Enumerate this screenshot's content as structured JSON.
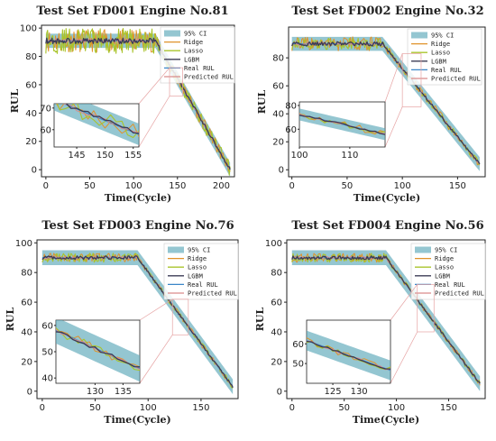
{
  "colors": {
    "ci": "#5aa8b8",
    "ridge": "#e0922a",
    "lasso": "#a9c42c",
    "lgbm": "#3b3b55",
    "real": "#3a86c8",
    "predicted": "#d98b8b",
    "connector": "#e6a3a3"
  },
  "legend_labels": [
    "95% CI",
    "Ridge",
    "Lasso",
    "LGBM",
    "Real RUL",
    "Predicted RUL"
  ],
  "chart_data": [
    {
      "type": "line",
      "title": "Test Set FD001 Engine No.81",
      "xlabel": "Time(Cycle)",
      "ylabel": "RUL",
      "xlim": [
        -5,
        215
      ],
      "ylim": [
        -5,
        102
      ],
      "xticks": [
        0,
        50,
        100,
        150,
        200
      ],
      "yticks": [
        0,
        20,
        40,
        60,
        80,
        100
      ],
      "knee": 125,
      "x_end": 210,
      "plateau": 91,
      "end_value": 0,
      "ci_half_width": 5,
      "noise": {
        "ridge": 8,
        "lasso": 9,
        "lgbm": 2
      },
      "legend_position": "top-right",
      "inset": {
        "xlim": [
          141,
          156
        ],
        "ylim": [
          52,
          72
        ],
        "xticks": [
          145,
          150,
          155
        ],
        "yticks": [
          60,
          70
        ]
      }
    },
    {
      "type": "line",
      "title": "Test Set FD002 Engine No.32",
      "xlabel": "Time(Cycle)",
      "ylabel": "RUL",
      "xlim": [
        -3,
        175
      ],
      "ylim": [
        -5,
        102
      ],
      "xticks": [
        0,
        50,
        100,
        150
      ],
      "yticks": [
        0,
        20,
        40,
        60,
        80
      ],
      "knee": 82,
      "x_end": 170,
      "plateau": 90,
      "end_value": 4,
      "ci_half_width": 5,
      "noise": {
        "ridge": 5,
        "lasso": 4,
        "lgbm": 1.5
      },
      "legend_position": "top-right",
      "inset": {
        "xlim": [
          100,
          117
        ],
        "ylim": [
          45,
          83
        ],
        "xticks": [
          100,
          110
        ],
        "yticks": [
          60,
          80
        ]
      }
    },
    {
      "type": "line",
      "title": "Test Set FD003 Engine No.76",
      "xlabel": "Time(Cycle)",
      "ylabel": "RUL",
      "xlim": [
        -5,
        185
      ],
      "ylim": [
        -5,
        102
      ],
      "xticks": [
        0,
        50,
        100,
        150
      ],
      "yticks": [
        0,
        20,
        40,
        60,
        80,
        100
      ],
      "knee": 90,
      "x_end": 180,
      "plateau": 90,
      "end_value": 3,
      "ci_half_width": 5,
      "noise": {
        "ridge": 3,
        "lasso": 3,
        "lgbm": 1.2
      },
      "legend_position": "top-right",
      "inset": {
        "xlim": [
          123,
          138
        ],
        "ylim": [
          38,
          62
        ],
        "xticks": [
          130,
          135
        ],
        "yticks": [
          40,
          50,
          60
        ]
      }
    },
    {
      "type": "line",
      "title": "Test Set FD004 Engine No.56",
      "xlabel": "Time(Cycle)",
      "ylabel": "RUL",
      "xlim": [
        -5,
        185
      ],
      "ylim": [
        -5,
        102
      ],
      "xticks": [
        0,
        50,
        100,
        150
      ],
      "yticks": [
        0,
        20,
        40,
        60,
        80,
        100
      ],
      "knee": 90,
      "x_end": 180,
      "plateau": 90,
      "end_value": 5,
      "ci_half_width": 5,
      "noise": {
        "ridge": 3,
        "lasso": 3,
        "lgbm": 1.2
      },
      "legend_position": "top-right",
      "inset": {
        "xlim": [
          120,
          136
        ],
        "ylim": [
          40,
          72
        ],
        "xticks": [
          125,
          130
        ],
        "yticks": [
          50,
          60
        ]
      }
    }
  ]
}
